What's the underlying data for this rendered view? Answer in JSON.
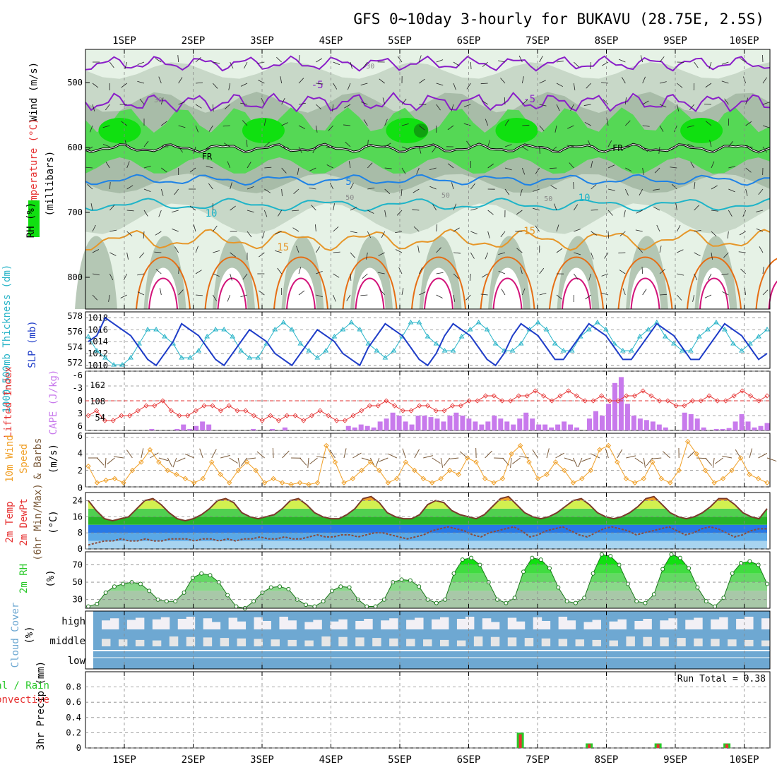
{
  "title": "GFS 0~10day 3-hourly for BUKAVU (28.75E, 2.5S)",
  "days": [
    "1SEP",
    "2SEP",
    "3SEP",
    "4SEP",
    "5SEP",
    "6SEP",
    "7SEP",
    "8SEP",
    "9SEP",
    "10SEP"
  ],
  "colors": {
    "rh_light": "#e6f2e6",
    "rh_mid": "#c8d8c8",
    "rh_dark": "#a8bca8",
    "rh_green": "#55d855",
    "rh_bright": "#10e010",
    "rh_deep": "#10a010",
    "temp_purple": "#8a1ec8",
    "temp_blue": "#1e82e6",
    "temp_cyan": "#1eb4c8",
    "temp_orange": "#e69628",
    "temp_dark_orange": "#e66e14",
    "temp_magenta": "#d2147a",
    "slp": "#1e3cc8",
    "thickness": "#28b4c8",
    "cape": "#c87aec",
    "lifted": "#e63232",
    "wind": "#f0a028",
    "rh2m": "#28c828",
    "cloud": "#6ea8d2",
    "precip_total": "#28c828",
    "precip_conv": "#e63232"
  },
  "panels": {
    "upper": {
      "label_rh": "RH (%)",
      "label_temp": "Temperature (°C)",
      "label_wind": "Wind (m/s)",
      "label_pressure": "(millibars)",
      "yticks": [
        "500",
        "600",
        "700",
        "800"
      ],
      "contours": [
        {
          "label": "-5",
          "kind": "temp"
        },
        {
          "label": "FR",
          "kind": "freezing"
        },
        {
          "label": "5",
          "kind": "temp"
        },
        {
          "label": "10",
          "kind": "temp"
        },
        {
          "label": "15",
          "kind": "temp"
        }
      ],
      "rh_labels": [
        "30",
        "50"
      ]
    },
    "slp_thick": {
      "label_thick": "1000-500mb Thickness (dm)",
      "label_slp": "SLP (mb)",
      "left_ticks": [
        "578",
        "576",
        "574",
        "572"
      ],
      "right_ticks": [
        "1018",
        "1016",
        "1014",
        "1012",
        "1010"
      ]
    },
    "cape_li": {
      "label_li": "Lifted Index",
      "label_cape": "CAPE (J/kg)",
      "left_ticks": [
        "-6",
        "-3",
        "0",
        "3",
        "6"
      ],
      "right_ticks": [
        "162",
        "108",
        "54"
      ]
    },
    "wind10": {
      "label_a": "10m Wind",
      "label_b": "Speed",
      "label_c": "& Barbs",
      "unit": "(m/s)",
      "ticks": [
        "6",
        "4",
        "2",
        "0"
      ]
    },
    "temp2m": {
      "label_a": "2m Temp",
      "label_b": "2m DewPt",
      "label_c": "(6hr Min/Max)",
      "unit": "(°C)",
      "ticks": [
        "24",
        "16",
        "8",
        "0"
      ]
    },
    "rh2m": {
      "label": "2m RH",
      "unit": "(%)",
      "ticks": [
        "70",
        "50",
        "30"
      ]
    },
    "cloud": {
      "label": "Cloud Cover",
      "unit": "(%)",
      "levels": [
        "high",
        "middle",
        "low"
      ]
    },
    "precip": {
      "label_a": "3hr Precip (mm)",
      "label_b": "Total / Rain",
      "label_c": "Convective",
      "ticks": [
        "0.8",
        "0.6",
        "0.4",
        "0.2",
        "0"
      ],
      "run_total": "Run Total = 0.38"
    }
  },
  "chart_data": {
    "type": "meteogram",
    "x_axis": "time, 3-hourly, 1SEP to 10SEP",
    "slp_mb": [
      1014,
      1015,
      1018,
      1017,
      1016,
      1015,
      1013,
      1011,
      1010,
      1012,
      1014,
      1017,
      1016,
      1015,
      1013,
      1011,
      1010,
      1012,
      1014,
      1016,
      1015,
      1014,
      1012,
      1011,
      1010,
      1012,
      1014,
      1016,
      1015,
      1014,
      1012,
      1011,
      1010,
      1013,
      1015,
      1017,
      1016,
      1015,
      1013,
      1011,
      1010,
      1012,
      1015,
      1017,
      1016,
      1015,
      1013,
      1011,
      1010,
      1012,
      1015,
      1017,
      1016,
      1015,
      1013,
      1011,
      1011,
      1013,
      1015,
      1017,
      1016,
      1015,
      1013,
      1011,
      1011,
      1013,
      1015,
      1017,
      1016,
      1015,
      1013,
      1011,
      1011,
      1013,
      1015,
      1017,
      1016,
      1015,
      1013,
      1011,
      1012
    ],
    "thickness_dm": [
      575,
      573,
      572,
      571,
      571,
      572,
      574,
      576,
      576,
      575,
      574,
      572,
      572,
      573,
      575,
      576,
      576,
      575,
      573,
      572,
      572,
      574,
      576,
      577,
      576,
      574,
      573,
      572,
      573,
      575,
      576,
      577,
      576,
      574,
      573,
      572,
      573,
      575,
      577,
      577,
      575,
      574,
      573,
      573,
      575,
      576,
      577,
      576,
      574,
      573,
      573,
      574,
      576,
      577,
      576,
      574,
      573,
      573,
      575,
      576,
      577,
      576,
      574,
      573,
      573,
      575,
      576,
      577,
      575,
      574,
      573,
      573,
      575,
      576,
      577,
      576,
      574,
      573,
      574,
      575,
      576
    ],
    "cape_jkg": [
      0,
      0,
      0,
      0,
      0,
      0,
      0,
      0,
      0,
      0,
      5,
      0,
      0,
      0,
      5,
      20,
      5,
      15,
      30,
      20,
      0,
      0,
      0,
      0,
      0,
      0,
      5,
      0,
      0,
      5,
      0,
      10,
      0,
      0,
      0,
      0,
      0,
      0,
      0,
      0,
      0,
      15,
      10,
      20,
      15,
      10,
      30,
      40,
      60,
      50,
      30,
      20,
      50,
      50,
      45,
      40,
      30,
      50,
      60,
      50,
      40,
      30,
      20,
      30,
      50,
      40,
      30,
      20,
      40,
      60,
      40,
      20,
      20,
      10,
      20,
      30,
      20,
      10,
      0,
      40,
      65,
      50,
      90,
      160,
      180,
      90,
      50,
      40,
      35,
      30,
      20,
      10,
      0,
      0,
      60,
      55,
      40,
      10,
      0,
      5,
      5,
      8,
      30,
      55,
      30,
      10,
      15,
      25
    ],
    "lifted_index": [
      3,
      2,
      4,
      4,
      3,
      3,
      2,
      1,
      1,
      0,
      2,
      3,
      3,
      2,
      1,
      1,
      2,
      1,
      2,
      2,
      3,
      4,
      3,
      4,
      3,
      3,
      4,
      3,
      2,
      3,
      4,
      4,
      3,
      2,
      1,
      1,
      0,
      1,
      2,
      2,
      1,
      1,
      2,
      2,
      1,
      1,
      0,
      0,
      -1,
      -1,
      0,
      0,
      -1,
      -1,
      -2,
      -1,
      0,
      -1,
      -2,
      -1,
      0,
      0,
      -1,
      0,
      0,
      -1,
      -1,
      -2,
      -1,
      0,
      0,
      1,
      1,
      0,
      0,
      -1,
      0,
      0,
      -1,
      -2,
      -1,
      0,
      -1
    ],
    "wind10_ms": [
      2.5,
      0.5,
      0.8,
      1,
      0.5,
      2,
      3,
      4.5,
      3,
      2,
      1.5,
      1,
      0.5,
      1,
      3,
      1.5,
      0.5,
      2,
      3,
      2,
      0.5,
      1,
      0.5,
      0.3,
      0.5,
      0.3,
      0.5,
      5,
      3,
      0.5,
      1,
      2,
      3,
      2,
      0.5,
      1,
      3,
      2,
      1,
      0.5,
      1,
      2,
      1.5,
      3.5,
      3,
      1,
      0.5,
      1,
      4,
      5,
      3,
      1,
      1.5,
      3,
      2,
      0.5,
      1,
      2,
      4.5,
      5,
      3,
      1,
      0.5,
      1,
      3,
      1,
      0.5,
      2,
      5.5,
      4,
      2,
      0.5,
      1,
      2,
      3.5,
      1.5,
      1,
      0.5
    ],
    "temp2m_c": [
      24,
      19,
      15,
      14,
      15,
      16,
      20,
      24,
      25,
      22,
      18,
      15,
      14,
      15,
      17,
      20,
      24,
      25,
      23,
      18,
      16,
      15,
      16,
      17,
      20,
      24,
      25,
      22,
      18,
      16,
      15,
      15,
      17,
      20,
      25,
      26,
      23,
      18,
      16,
      15,
      15,
      17,
      22,
      24,
      23,
      19,
      17,
      16,
      15,
      17,
      21,
      25,
      26,
      22,
      18,
      16,
      15,
      16,
      18,
      21,
      24,
      25,
      22,
      18,
      16,
      15,
      16,
      18,
      21,
      25,
      26,
      22,
      18,
      16,
      15,
      16,
      18,
      21,
      25,
      25,
      22,
      18,
      16,
      15,
      20
    ],
    "dewpt2m_c": [
      2,
      3,
      4,
      4,
      5,
      4,
      4,
      5,
      4,
      4,
      5,
      5,
      5,
      4,
      5,
      5,
      4,
      5,
      4,
      5,
      5,
      6,
      5,
      5,
      6,
      5,
      5,
      6,
      7,
      6,
      6,
      7,
      7,
      6,
      7,
      8,
      8,
      7,
      6,
      5,
      6,
      7,
      9,
      10,
      11,
      10,
      9,
      7,
      6,
      8,
      9,
      10,
      11,
      9,
      6,
      7,
      9,
      10,
      11,
      9,
      7,
      6,
      8,
      10,
      11,
      10,
      9,
      7,
      8,
      9,
      10,
      11,
      9,
      7,
      8,
      10,
      11,
      10,
      8,
      6,
      7,
      9,
      10,
      10
    ],
    "rh2m_pct": [
      22,
      25,
      38,
      45,
      48,
      50,
      48,
      40,
      30,
      28,
      28,
      38,
      55,
      60,
      58,
      50,
      35,
      22,
      20,
      28,
      38,
      44,
      45,
      42,
      30,
      24,
      22,
      28,
      40,
      45,
      44,
      30,
      22,
      22,
      30,
      50,
      53,
      52,
      45,
      30,
      26,
      30,
      60,
      76,
      78,
      70,
      50,
      30,
      26,
      32,
      62,
      78,
      76,
      66,
      44,
      28,
      26,
      32,
      60,
      82,
      80,
      70,
      48,
      28,
      26,
      36,
      65,
      82,
      78,
      66,
      44,
      28,
      22,
      32,
      60,
      72,
      74,
      70,
      48
    ],
    "precip_mm": {
      "times": [
        "6SEP 18Z",
        "7SEP 18Z",
        "8SEP 18Z",
        "9SEP 18Z"
      ],
      "total": [
        0.2,
        0.06,
        0.06,
        0.06
      ],
      "convective": [
        0.18,
        0.05,
        0.05,
        0.05
      ]
    },
    "run_total_mm": 0.38,
    "upper_air_contours_c": [
      -5,
      0,
      5,
      10,
      15
    ]
  }
}
